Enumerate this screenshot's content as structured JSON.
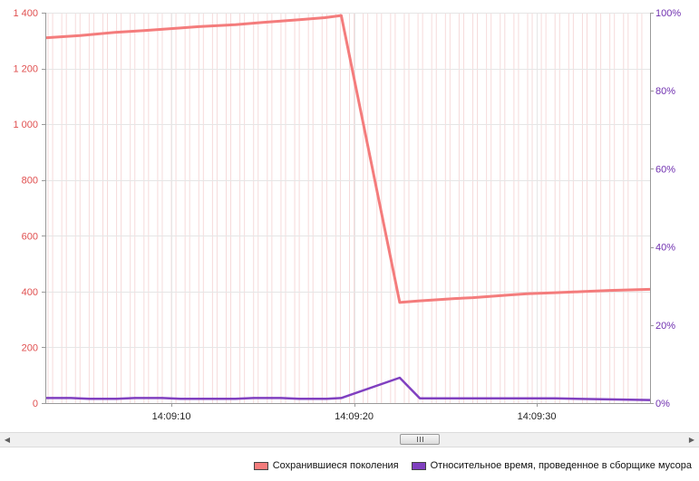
{
  "chart_data": {
    "type": "line",
    "x_ticks": [
      "14:09:10",
      "14:09:20",
      "14:09:30"
    ],
    "y_left_ticks": [
      "0",
      "200",
      "400",
      "600",
      "800",
      "1 000",
      "1 200",
      "1 400"
    ],
    "y_right_ticks": [
      "0%",
      "20%",
      "40%",
      "60%",
      "80%",
      "100%"
    ],
    "ylim_left": [
      0,
      1400
    ],
    "ylim_right": [
      0,
      100
    ],
    "xlim_seconds": [
      3.1,
      36.2
    ],
    "x_tick_seconds": [
      10,
      20,
      30
    ],
    "grid": true,
    "legend_position": "bottom-right",
    "series": [
      {
        "name": "Сохранившиеся поколения",
        "axis": "left",
        "color": "#f47c7c",
        "points": [
          [
            3.1,
            1310
          ],
          [
            5,
            1318
          ],
          [
            7,
            1330
          ],
          [
            8.5,
            1336
          ],
          [
            10.5,
            1345
          ],
          [
            11.5,
            1350
          ],
          [
            13.5,
            1357
          ],
          [
            15,
            1365
          ],
          [
            17,
            1375
          ],
          [
            18.4,
            1382
          ],
          [
            19.3,
            1390
          ],
          [
            22.5,
            361
          ],
          [
            23.5,
            366
          ],
          [
            25.5,
            375
          ],
          [
            26.5,
            378
          ],
          [
            28.5,
            388
          ],
          [
            29.5,
            392
          ],
          [
            31,
            396
          ],
          [
            32.5,
            400
          ],
          [
            34,
            404
          ],
          [
            36.2,
            408
          ]
        ]
      },
      {
        "name": "Относительное время, проведенное в сборщике мусора",
        "axis": "right",
        "color": "#8040c0",
        "points": [
          [
            3.1,
            1.3
          ],
          [
            4.5,
            1.3
          ],
          [
            5.5,
            1.1
          ],
          [
            7,
            1.1
          ],
          [
            8,
            1.3
          ],
          [
            9.5,
            1.3
          ],
          [
            10.5,
            1.1
          ],
          [
            13.5,
            1.1
          ],
          [
            14.5,
            1.3
          ],
          [
            16,
            1.3
          ],
          [
            17,
            1.1
          ],
          [
            18.5,
            1.1
          ],
          [
            19.3,
            1.3
          ],
          [
            22.5,
            6.5
          ],
          [
            23.6,
            1.2
          ],
          [
            26,
            1.2
          ],
          [
            29,
            1.2
          ],
          [
            31,
            1.2
          ],
          [
            36.2,
            0.8
          ]
        ]
      }
    ]
  },
  "scrollbar": {
    "left_arrow": "◀",
    "right_arrow": "▶"
  },
  "legend": {
    "items": [
      {
        "label": "Сохранившиеся поколения",
        "color": "#f47c7c"
      },
      {
        "label": "Относительное время, проведенное в сборщике мусора",
        "color": "#8040c0"
      }
    ]
  },
  "colors": {
    "left_axis": "#e05050",
    "right_axis": "#7030b0",
    "grid_major": "#e6e6e6",
    "grid_minor": "#f6dada"
  }
}
